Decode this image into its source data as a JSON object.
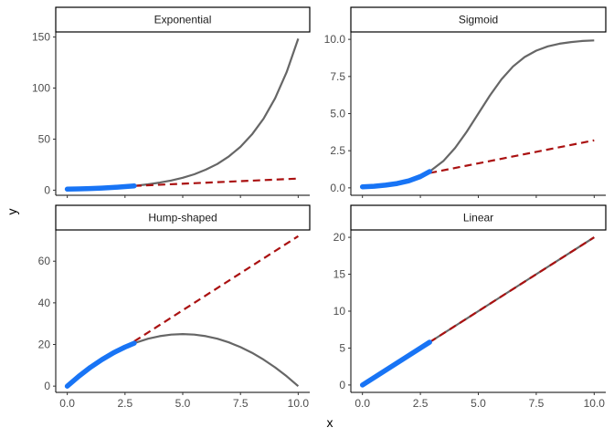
{
  "chart_data": {
    "type": "line",
    "xlabel": "x",
    "ylabel": "y",
    "legend": "none",
    "grid": false,
    "colors": {
      "truth": "#666666",
      "observed": "#1874f5",
      "extrapolation": "#aa1111"
    },
    "panels": [
      {
        "title": "Exponential",
        "xlim": [
          -0.5,
          10.5
        ],
        "ylim": [
          -5,
          155
        ],
        "x_ticks": [
          0,
          2.5,
          5,
          7.5,
          10
        ],
        "x_tick_labels": [],
        "y_ticks": [
          0,
          50,
          100,
          150
        ],
        "y_tick_labels": [
          "0",
          "50",
          "100",
          "150"
        ],
        "curve_x": [
          0,
          0.5,
          1,
          1.5,
          2,
          2.5,
          2.9,
          3.5,
          4,
          4.5,
          5,
          5.5,
          6,
          6.5,
          7,
          7.5,
          8,
          8.5,
          9,
          9.5,
          10
        ],
        "curve_y": [
          1,
          1.3,
          1.65,
          2.1,
          2.7,
          3.5,
          4.2,
          5.7,
          7.4,
          9.5,
          12.2,
          15.6,
          20.1,
          25.7,
          33.1,
          42.5,
          54.6,
          70.1,
          90,
          115.6,
          148.4
        ],
        "observed_x": [
          0,
          0.5,
          1,
          1.5,
          2,
          2.5,
          2.9
        ],
        "observed_y": [
          1,
          1.3,
          1.65,
          2.1,
          2.7,
          3.5,
          4.2
        ],
        "extrapolation_x": [
          2.9,
          10
        ],
        "extrapolation_y": [
          4.2,
          11.4
        ]
      },
      {
        "title": "Sigmoid",
        "xlim": [
          -0.5,
          10.5
        ],
        "ylim": [
          -0.5,
          10.5
        ],
        "x_ticks": [
          0,
          2.5,
          5,
          7.5,
          10
        ],
        "x_tick_labels": [],
        "y_ticks": [
          0,
          2.5,
          5,
          7.5,
          10
        ],
        "y_tick_labels": [
          "0.0",
          "2.5",
          "5.0",
          "7.5",
          "10.0"
        ],
        "curve_x": [
          0,
          0.5,
          1,
          1.5,
          2,
          2.5,
          2.9,
          3.5,
          4,
          4.5,
          5,
          5.5,
          6,
          6.5,
          7,
          7.5,
          8,
          8.5,
          9,
          9.5,
          10
        ],
        "curve_y": [
          0.07,
          0.11,
          0.18,
          0.29,
          0.47,
          0.76,
          1.1,
          1.82,
          2.69,
          3.78,
          5.0,
          6.22,
          7.31,
          8.18,
          8.81,
          9.24,
          9.53,
          9.71,
          9.82,
          9.89,
          9.93
        ],
        "observed_x": [
          0,
          0.5,
          1,
          1.5,
          2,
          2.5,
          2.9
        ],
        "observed_y": [
          0.07,
          0.11,
          0.18,
          0.29,
          0.47,
          0.76,
          1.1
        ],
        "extrapolation_x": [
          2.9,
          10
        ],
        "extrapolation_y": [
          1.0,
          3.2
        ]
      },
      {
        "title": "Hump-shaped",
        "xlim": [
          -0.5,
          10.5
        ],
        "ylim": [
          -3,
          75
        ],
        "x_ticks": [
          0,
          2.5,
          5,
          7.5,
          10
        ],
        "x_tick_labels": [
          "0.0",
          "2.5",
          "5.0",
          "7.5",
          "10.0"
        ],
        "y_ticks": [
          0,
          20,
          40,
          60
        ],
        "y_tick_labels": [
          "0",
          "20",
          "40",
          "60"
        ],
        "curve_x": [
          0,
          0.5,
          1,
          1.5,
          2,
          2.5,
          2.9,
          3.5,
          4,
          4.5,
          5,
          5.5,
          6,
          6.5,
          7,
          7.5,
          8,
          8.5,
          9,
          9.5,
          10
        ],
        "curve_y": [
          0,
          4.75,
          9,
          12.75,
          16,
          18.75,
          20.6,
          22.75,
          24,
          24.75,
          25,
          24.75,
          24,
          22.75,
          21,
          18.75,
          16,
          12.75,
          9,
          4.75,
          0
        ],
        "observed_x": [
          0,
          0.5,
          1,
          1.5,
          2,
          2.5,
          2.9
        ],
        "observed_y": [
          0,
          4.75,
          9,
          12.75,
          16,
          18.75,
          20.6
        ],
        "extrapolation_x": [
          2.9,
          10
        ],
        "extrapolation_y": [
          21.5,
          72
        ]
      },
      {
        "title": "Linear",
        "xlim": [
          -0.5,
          10.5
        ],
        "ylim": [
          -1,
          21
        ],
        "x_ticks": [
          0,
          2.5,
          5,
          7.5,
          10
        ],
        "x_tick_labels": [
          "0.0",
          "2.5",
          "5.0",
          "7.5",
          "10.0"
        ],
        "y_ticks": [
          0,
          5,
          10,
          15,
          20
        ],
        "y_tick_labels": [
          "0",
          "5",
          "10",
          "15",
          "20"
        ],
        "curve_x": [
          0,
          2.9,
          5,
          7.5,
          10
        ],
        "curve_y": [
          0,
          5.8,
          10,
          15,
          20
        ],
        "observed_x": [
          0,
          2.9
        ],
        "observed_y": [
          0,
          5.8
        ],
        "extrapolation_x": [
          2.9,
          10
        ],
        "extrapolation_y": [
          5.8,
          20
        ]
      }
    ]
  }
}
